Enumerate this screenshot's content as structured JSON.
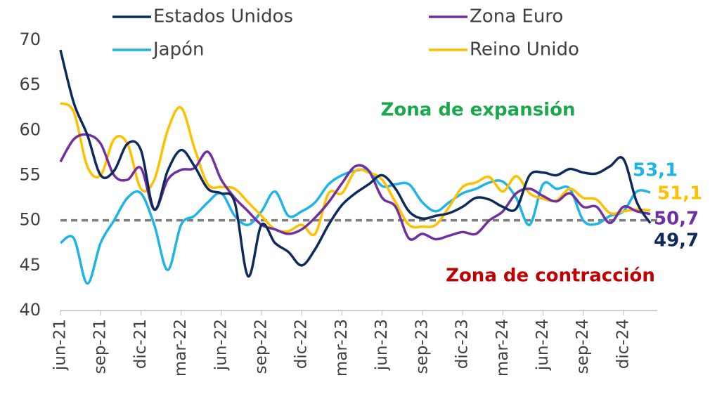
{
  "chart_data": {
    "type": "line",
    "annotations": [
      {
        "text": "Zona de expansión",
        "color": "#1aa84c"
      },
      {
        "text": "Zona de contracción",
        "color": "#c00000"
      }
    ],
    "reference_line": 50,
    "categories": [
      "jun-21",
      null,
      null,
      "sep-21",
      null,
      null,
      "dic-21",
      null,
      null,
      "mar-22",
      null,
      null,
      "jun-22",
      null,
      null,
      "sep-22",
      null,
      null,
      "dic-22",
      null,
      null,
      "mar-23",
      null,
      null,
      "jun-23",
      null,
      null,
      "sep-23",
      null,
      null,
      "dic-23",
      null,
      null,
      "mar-24",
      null,
      null,
      "jun-24",
      null,
      null,
      "sep-24",
      null,
      null,
      "dic-24",
      null,
      null
    ],
    "ylim": [
      40,
      70
    ],
    "yticks": [
      40,
      45,
      50,
      55,
      60,
      65,
      70
    ],
    "series": [
      {
        "name": "Estados Unidos",
        "color": "#0e2a5c",
        "values": [
          68.9,
          63,
          59.5,
          55,
          55.5,
          58.5,
          57.8,
          51.2,
          55.5,
          57.8,
          56,
          53.5,
          53,
          52,
          43.8,
          49.5,
          47.5,
          46.5,
          45,
          46.8,
          49.5,
          51.7,
          53,
          54,
          55,
          53.5,
          51,
          50.2,
          50.5,
          50.8,
          51.5,
          52.5,
          52.3,
          51.5,
          51.3,
          55,
          55.3,
          55,
          55.7,
          55.3,
          55.2,
          56,
          56.8,
          52,
          49.7
        ],
        "value_labels": [
          null,
          null,
          null,
          null,
          null,
          null,
          null,
          null,
          null,
          null,
          null,
          null,
          null,
          null,
          null,
          null,
          null,
          null,
          null,
          null,
          null,
          null,
          null,
          null,
          null,
          null,
          null,
          null,
          null,
          null,
          null,
          null,
          null,
          null,
          null,
          null,
          null,
          null,
          null,
          null,
          null,
          null,
          null,
          null,
          "49,7"
        ]
      },
      {
        "name": "Zona Euro",
        "color": "#7030a0",
        "values": [
          56.5,
          59,
          59.5,
          58.5,
          55,
          54.5,
          55.8,
          51.2,
          54.5,
          55.6,
          55.8,
          57.6,
          54.5,
          52.5,
          51,
          49.5,
          49,
          48.5,
          49,
          50.3,
          52,
          54.1,
          56,
          55.5,
          52.5,
          51.5,
          48,
          48.5,
          47.9,
          48.3,
          48.7,
          48.5,
          50,
          51,
          53,
          53.5,
          52.7,
          52.1,
          53,
          51.5,
          51.5,
          49.7,
          51.5,
          51,
          50.7
        ],
        "value_labels": [
          null,
          null,
          null,
          null,
          null,
          null,
          null,
          null,
          null,
          null,
          null,
          null,
          null,
          null,
          null,
          null,
          null,
          null,
          null,
          null,
          null,
          null,
          null,
          null,
          null,
          null,
          null,
          null,
          null,
          null,
          null,
          null,
          null,
          null,
          null,
          null,
          null,
          null,
          null,
          null,
          null,
          null,
          null,
          null,
          "50,7"
        ]
      },
      {
        "name": "Japón",
        "color": "#1fb4e8",
        "values": [
          47.5,
          48,
          43,
          47.5,
          50,
          52.5,
          53,
          49.5,
          44.5,
          49.5,
          50.5,
          52,
          53,
          50.5,
          49.5,
          51,
          53.2,
          50.5,
          51,
          52,
          54,
          55,
          55.5,
          55.5,
          53.8,
          54,
          54,
          52,
          51,
          52,
          53,
          53.5,
          54.2,
          54.3,
          52.5,
          49.5,
          54,
          53.5,
          53.5,
          50,
          49.6,
          50.5,
          51,
          53.2,
          53.1
        ],
        "value_labels": [
          null,
          null,
          null,
          null,
          null,
          null,
          null,
          null,
          null,
          null,
          null,
          null,
          null,
          null,
          null,
          null,
          null,
          null,
          null,
          null,
          null,
          null,
          null,
          null,
          null,
          null,
          null,
          null,
          null,
          null,
          null,
          null,
          null,
          null,
          null,
          null,
          null,
          null,
          null,
          null,
          null,
          null,
          null,
          null,
          "53,1"
        ]
      },
      {
        "name": "Reino Unido",
        "color": "#ffc000",
        "values": [
          63,
          62,
          56,
          55,
          59,
          58.5,
          53.5,
          54.5,
          60,
          62.5,
          58,
          54,
          53.7,
          53.5,
          52,
          50.5,
          49,
          48.8,
          49.5,
          48.5,
          53,
          53,
          55.5,
          55.3,
          54.5,
          52,
          49.5,
          49.3,
          49.5,
          51.5,
          53.7,
          54.2,
          54.8,
          53.2,
          54.9,
          53,
          52.4,
          52.2,
          53.5,
          52.5,
          52.3,
          50.8,
          51,
          51.2,
          51.1
        ],
        "value_labels": [
          null,
          null,
          null,
          null,
          null,
          null,
          null,
          null,
          null,
          null,
          null,
          null,
          null,
          null,
          null,
          null,
          null,
          null,
          null,
          null,
          null,
          null,
          null,
          null,
          null,
          null,
          null,
          null,
          null,
          null,
          null,
          null,
          null,
          null,
          null,
          null,
          null,
          null,
          null,
          null,
          null,
          null,
          null,
          null,
          "51,1"
        ]
      }
    ]
  }
}
